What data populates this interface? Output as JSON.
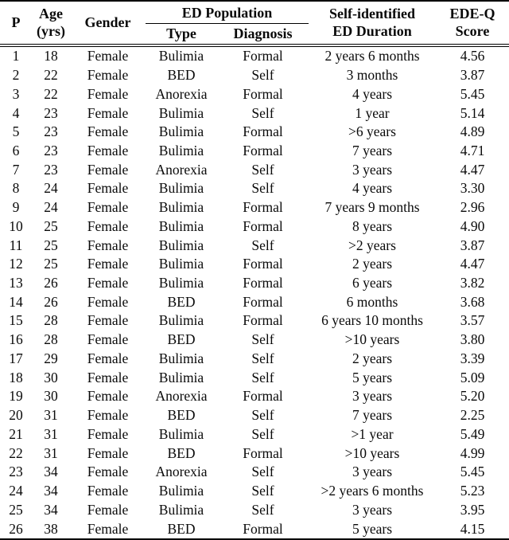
{
  "table": {
    "header": {
      "p": "P",
      "age_line1": "Age",
      "age_line2": "(yrs)",
      "gender": "Gender",
      "ed_population": "ED Population",
      "type": "Type",
      "diagnosis": "Diagnosis",
      "duration_line1": "Self-identified",
      "duration_line2": "ED Duration",
      "score_line1": "EDE-Q",
      "score_line2": "Score"
    },
    "rows": [
      [
        "1",
        "18",
        "Female",
        "Bulimia",
        "Formal",
        "2 years 6 months",
        "4.56"
      ],
      [
        "2",
        "22",
        "Female",
        "BED",
        "Self",
        "3 months",
        "3.87"
      ],
      [
        "3",
        "22",
        "Female",
        "Anorexia",
        "Formal",
        "4 years",
        "5.45"
      ],
      [
        "4",
        "23",
        "Female",
        "Bulimia",
        "Self",
        "1 year",
        "5.14"
      ],
      [
        "5",
        "23",
        "Female",
        "Bulimia",
        "Formal",
        ">6 years",
        "4.89"
      ],
      [
        "6",
        "23",
        "Female",
        "Bulimia",
        "Formal",
        "7 years",
        "4.71"
      ],
      [
        "7",
        "23",
        "Female",
        "Anorexia",
        "Self",
        "3 years",
        "4.47"
      ],
      [
        "8",
        "24",
        "Female",
        "Bulimia",
        "Self",
        "4 years",
        "3.30"
      ],
      [
        "9",
        "24",
        "Female",
        "Bulimia",
        "Formal",
        "7 years 9 months",
        "2.96"
      ],
      [
        "10",
        "25",
        "Female",
        "Bulimia",
        "Formal",
        "8 years",
        "4.90"
      ],
      [
        "11",
        "25",
        "Female",
        "Bulimia",
        "Self",
        ">2 years",
        "3.87"
      ],
      [
        "12",
        "25",
        "Female",
        "Bulimia",
        "Formal",
        "2 years",
        "4.47"
      ],
      [
        "13",
        "26",
        "Female",
        "Bulimia",
        "Formal",
        "6 years",
        "3.82"
      ],
      [
        "14",
        "26",
        "Female",
        "BED",
        "Formal",
        "6 months",
        "3.68"
      ],
      [
        "15",
        "28",
        "Female",
        "Bulimia",
        "Formal",
        "6 years 10 months",
        "3.57"
      ],
      [
        "16",
        "28",
        "Female",
        "BED",
        "Self",
        ">10 years",
        "3.80"
      ],
      [
        "17",
        "29",
        "Female",
        "Bulimia",
        "Self",
        "2 years",
        "3.39"
      ],
      [
        "18",
        "30",
        "Female",
        "Bulimia",
        "Self",
        "5 years",
        "5.09"
      ],
      [
        "19",
        "30",
        "Female",
        "Anorexia",
        "Formal",
        "3 years",
        "5.20"
      ],
      [
        "20",
        "31",
        "Female",
        "BED",
        "Self",
        "7 years",
        "2.25"
      ],
      [
        "21",
        "31",
        "Female",
        "Bulimia",
        "Self",
        ">1 year",
        "5.49"
      ],
      [
        "22",
        "31",
        "Female",
        "BED",
        "Formal",
        ">10 years",
        "4.99"
      ],
      [
        "23",
        "34",
        "Female",
        "Anorexia",
        "Self",
        "3 years",
        "5.45"
      ],
      [
        "24",
        "34",
        "Female",
        "Bulimia",
        "Self",
        ">2 years 6 months",
        "5.23"
      ],
      [
        "25",
        "34",
        "Female",
        "Bulimia",
        "Self",
        "3 years",
        "3.95"
      ],
      [
        "26",
        "38",
        "Female",
        "BED",
        "Formal",
        "5 years",
        "4.15"
      ]
    ]
  },
  "colors": {
    "text": "#0a0a0a",
    "background": "#ffffff",
    "rule": "#000000"
  }
}
